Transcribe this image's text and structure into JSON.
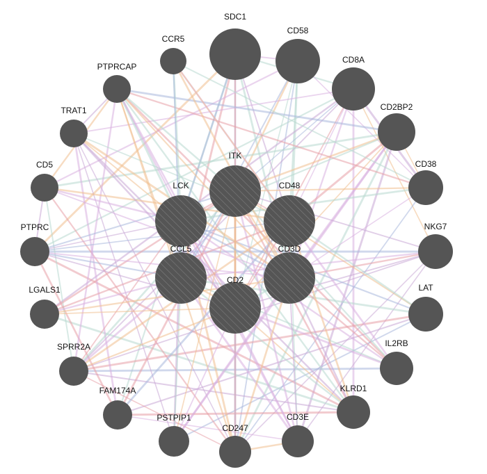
{
  "nodes": [
    {
      "label": "SDC1"
    },
    {
      "label": "CD58"
    },
    {
      "label": "CD8A"
    },
    {
      "label": "CD2BP2"
    },
    {
      "label": "CD38"
    },
    {
      "label": "NKG7"
    },
    {
      "label": "LAT"
    },
    {
      "label": "IL2RB"
    },
    {
      "label": "KLRD1"
    },
    {
      "label": "CD3E"
    },
    {
      "label": "CD247"
    },
    {
      "label": "PSTPIP1"
    },
    {
      "label": "FAM174A"
    },
    {
      "label": "SPRR2A"
    },
    {
      "label": "LGALS1"
    },
    {
      "label": "PTPRC"
    },
    {
      "label": "CD5"
    },
    {
      "label": "TRAT1"
    },
    {
      "label": "PTPRCAP"
    },
    {
      "label": "CCR5"
    },
    {
      "label": "ITK"
    },
    {
      "label": "LCK"
    },
    {
      "label": "CD48"
    },
    {
      "label": "CCL5"
    },
    {
      "label": "CD3D"
    },
    {
      "label": "CD2"
    }
  ]
}
